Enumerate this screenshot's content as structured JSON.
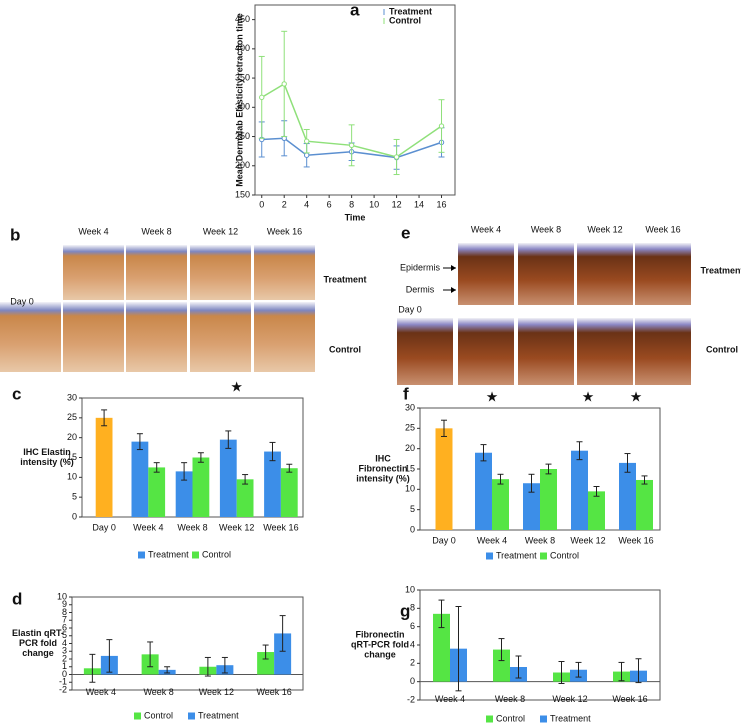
{
  "chart_data": [
    {
      "type": "line",
      "label": "a",
      "xlabel": "Time",
      "ylabel": "Mean Dermalab Elasticity retraction time",
      "x": [
        0,
        2,
        4,
        8,
        12,
        16
      ],
      "series": [
        {
          "name": "Treatment",
          "color": "#5b8fd0",
          "values": [
            245,
            247,
            218,
            224,
            214,
            240
          ],
          "errors": [
            30,
            30,
            20,
            15,
            20,
            25
          ]
        },
        {
          "name": "Control",
          "color": "#8fe07a",
          "values": [
            317,
            340,
            242,
            235,
            215,
            268
          ],
          "errors": [
            70,
            90,
            20,
            35,
            30,
            45
          ]
        }
      ],
      "xlim": [
        -0.6,
        17.2
      ],
      "ylim": [
        150,
        475
      ],
      "xticks": [
        0,
        2,
        4,
        6,
        8,
        10,
        12,
        14,
        16
      ],
      "yticks": [
        150,
        200,
        250,
        300,
        350,
        400,
        450
      ],
      "legend": "upper right"
    },
    {
      "type": "bar",
      "label": "c",
      "ylabel": [
        "IHC Elastin",
        "intensity (%)"
      ],
      "categories": [
        "Day 0",
        "Week 4",
        "Week 8",
        "Week 12",
        "Week 16"
      ],
      "series": [
        {
          "color": "#ffb020",
          "values": [
            25,
            null,
            null,
            null,
            null
          ],
          "errors": [
            2,
            null,
            null,
            null,
            null
          ]
        },
        {
          "name": "Treatment",
          "color": "#3c8ee8",
          "values": [
            null,
            19,
            11.5,
            19.5,
            16.5
          ],
          "errors": [
            null,
            2,
            2.2,
            2.2,
            2.3
          ]
        },
        {
          "name": "Control",
          "color": "#55e544",
          "values": [
            null,
            12.5,
            15,
            9.5,
            12.3
          ],
          "errors": [
            null,
            1.2,
            1.2,
            1.2,
            1
          ]
        }
      ],
      "ylim": [
        0,
        30
      ],
      "yticks": [
        0,
        5,
        10,
        15,
        20,
        25,
        30
      ],
      "annotations": [
        {
          "x": "Week 12",
          "text": "★"
        }
      ],
      "legend": "bottom"
    },
    {
      "type": "bar",
      "label": "f",
      "ylabel": [
        "IHC",
        "Fibronectin",
        "intensity (%)"
      ],
      "categories": [
        "Day 0",
        "Week 4",
        "Week 8",
        "Week 12",
        "Week 16"
      ],
      "series": [
        {
          "color": "#ffb020",
          "values": [
            25,
            null,
            null,
            null,
            null
          ],
          "errors": [
            2,
            null,
            null,
            null,
            null
          ]
        },
        {
          "name": "Treatment",
          "color": "#3c8ee8",
          "values": [
            null,
            19,
            11.5,
            19.5,
            16.5
          ],
          "errors": [
            null,
            2,
            2.2,
            2.2,
            2.3
          ]
        },
        {
          "name": "Control",
          "color": "#55e544",
          "values": [
            null,
            12.5,
            15,
            9.5,
            12.3
          ],
          "errors": [
            null,
            1.2,
            1.2,
            1.2,
            1
          ]
        }
      ],
      "ylim": [
        0,
        30
      ],
      "yticks": [
        0,
        5,
        10,
        15,
        20,
        25,
        30
      ],
      "annotations": [
        {
          "x": "Week 4",
          "text": "★"
        },
        {
          "x": "Week 12",
          "text": "★"
        },
        {
          "x": "Week 16",
          "text": "★"
        }
      ],
      "legend": "bottom"
    },
    {
      "type": "bar",
      "label": "d",
      "ylabel": [
        "Elastin qRT-",
        "PCR fold",
        "change"
      ],
      "categories": [
        "Week 4",
        "Week 8",
        "Week 12",
        "Week 16"
      ],
      "series": [
        {
          "name": "Control",
          "color": "#55e544",
          "values": [
            0.8,
            2.6,
            1.0,
            2.9
          ],
          "errors": [
            1.8,
            1.6,
            1.2,
            0.9
          ]
        },
        {
          "name": "Treatment",
          "color": "#3c8ee8",
          "values": [
            2.4,
            0.6,
            1.2,
            5.3
          ],
          "errors": [
            2.1,
            0.4,
            1.0,
            2.3
          ]
        }
      ],
      "ylim": [
        -2,
        10
      ],
      "yticks": [
        -2,
        -1,
        0,
        1,
        2,
        3,
        4,
        5,
        6,
        7,
        8,
        9,
        10
      ],
      "legend": "bottom"
    },
    {
      "type": "bar",
      "label": "g",
      "ylabel": [
        "Fibronectin",
        "qRT-PCR fold",
        "change"
      ],
      "categories": [
        "Week 4",
        "Week 8",
        "Week 12",
        "Week 16"
      ],
      "series": [
        {
          "name": "Control",
          "color": "#55e544",
          "values": [
            7.4,
            3.5,
            1.0,
            1.1
          ],
          "errors": [
            1.5,
            1.2,
            1.2,
            1.0
          ]
        },
        {
          "name": "Treatment",
          "color": "#3c8ee8",
          "values": [
            3.6,
            1.6,
            1.3,
            1.2
          ],
          "errors": [
            4.6,
            1.2,
            0.8,
            1.3
          ]
        }
      ],
      "ylim": [
        -2,
        10
      ],
      "yticks": [
        -2,
        0,
        2,
        4,
        6,
        8,
        10
      ],
      "legend": "bottom"
    }
  ],
  "image_panels": [
    {
      "label": "b",
      "columns": [
        "Week 4",
        "Week 8",
        "Week 12",
        "Week 16"
      ],
      "row_labels": [
        "Treatment",
        "Control"
      ],
      "day_label": "Day 0"
    },
    {
      "label": "e",
      "columns": [
        "Week 4",
        "Week 8",
        "Week 12",
        "Week 16"
      ],
      "row_labels": [
        "Treatment",
        "Control"
      ],
      "day_label": "Day 0",
      "arrows": [
        "Epidermis",
        "Dermis"
      ]
    }
  ]
}
